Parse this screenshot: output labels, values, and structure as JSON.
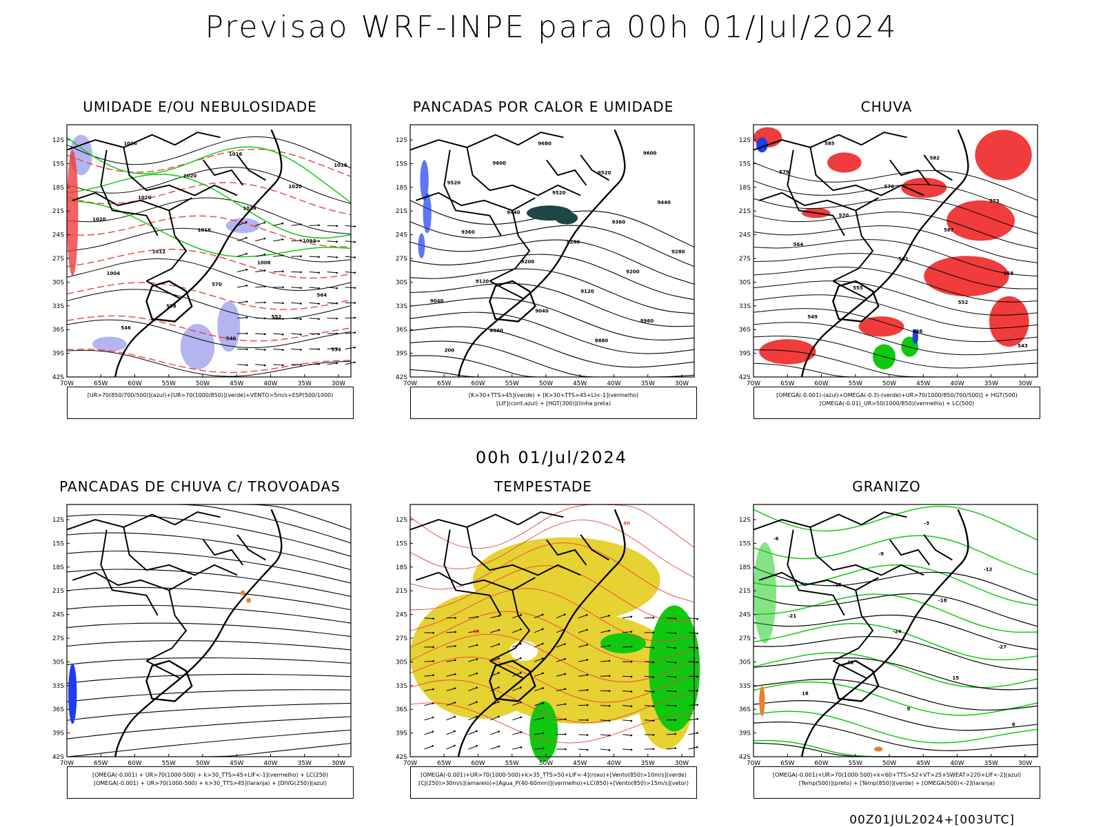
{
  "header": {
    "title": "Previsao WRF-INPE  para 00h 01/Jul/2024",
    "mid_title": "00h 01/Jul/2024",
    "footer": "00Z01JUL2024+[003UTC]"
  },
  "axes": {
    "lat_labels": [
      "12S",
      "15S",
      "18S",
      "21S",
      "24S",
      "27S",
      "30S",
      "33S",
      "36S",
      "39S",
      "42S"
    ],
    "lon_labels": [
      "70W",
      "65W",
      "60W",
      "55W",
      "50W",
      "45W",
      "40W",
      "35W",
      "30W"
    ]
  },
  "panels": [
    {
      "title": "UMIDADE E/OU NEBULOSIDADE",
      "legend": [
        "[UR>70(850/700/500)](azul)+[UR>70(1000/850)](verde)+VENTO>5m/s+ESP(500/1000)"
      ],
      "contour_labels": [
        "1016",
        "1016",
        "1016",
        "1020",
        "1020",
        "1020",
        "1024",
        "1020",
        "1016",
        "1012",
        "1012",
        "1008",
        "1004",
        "570",
        "564",
        "558",
        "552",
        "546",
        "540",
        "534"
      ]
    },
    {
      "title": "PANCADAS POR CALOR E UMIDADE",
      "legend": [
        "[K>30+TTS>45](verde) + [K>30+TTS>45+LI<-1](vermelho)",
        "[LIF](cont.azul) + [HGT(300)](linha preta)"
      ],
      "contour_labels": [
        "9680",
        "9600",
        "9600",
        "9520",
        "9520",
        "9520",
        "9440",
        "9440",
        "9360",
        "9360",
        "9280",
        "9280",
        "9200",
        "9200",
        "9120",
        "9120",
        "9040",
        "9040",
        "8960",
        "8960",
        "8880",
        "200"
      ]
    },
    {
      "title": "CHUVA",
      "legend": [
        "[OMEGA(-0.001)-(azul)+OMEGA(-0.3)-(verde)+UR>70(1000/850/700/500)] + HGT(500)",
        "[OMEGA(-0.01)_UR>50(1000/850)(vermelho) + LC(500)"
      ],
      "contour_labels": [
        "585",
        "582",
        "579",
        "576",
        "573",
        "570",
        "567",
        "564",
        "561",
        "558",
        "555",
        "552",
        "549",
        "546",
        "543"
      ]
    },
    {
      "title": "PANCADAS DE CHUVA C/ TROVOADAS",
      "legend": [
        "[OMEGA(-0.001) + UR>70(1000-500) + k>30_TTS>45+LIF<-1](vermelho) + LC(250)",
        "[OMEGA(-0.001) + UR>70(1000-500) + k>30_TTS>45](laranja) + [DIVG(250)](azul)"
      ],
      "contour_labels": []
    },
    {
      "title": "TEMPESTADE",
      "legend": [
        "[OMEGA(-0.001)+UR>70(1000-500)+k>35_TTS>50+LIF<-4](roxo)+[Vento(850)>10m/s](verde)",
        "[CJ(250)>30m/s](amarelo)+[Agua_P(40-60mm)](vermelho)+LC(850)+[Vento(850)>15m/s](vetor)"
      ],
      "contour_labels": [
        "40",
        "40"
      ]
    },
    {
      "title": "GRANIZO",
      "legend": [
        "[OMEGA(-0.001)+UR>70(1000-500)+k<60+TTS>52+VT>25+SWEAT>220+LIF<-2](azul)",
        "[Temp(500)](preto) + [Temp(850)](verde) + [OMEGA(500)<-2](laranja)"
      ],
      "contour_labels": [
        "-3",
        "-6",
        "-9",
        "-12",
        "-15",
        "-18",
        "-21",
        "-24",
        "-27",
        "12",
        "15",
        "18",
        "9",
        "6"
      ]
    }
  ],
  "colors": {
    "blue_shade": "#b4b4f0",
    "green": "#10c810",
    "red": "#f03c3c",
    "dark_teal": "#1e4646",
    "yellow": "#e6d232",
    "orange": "#e68232",
    "blue": "#1e3cf0"
  }
}
